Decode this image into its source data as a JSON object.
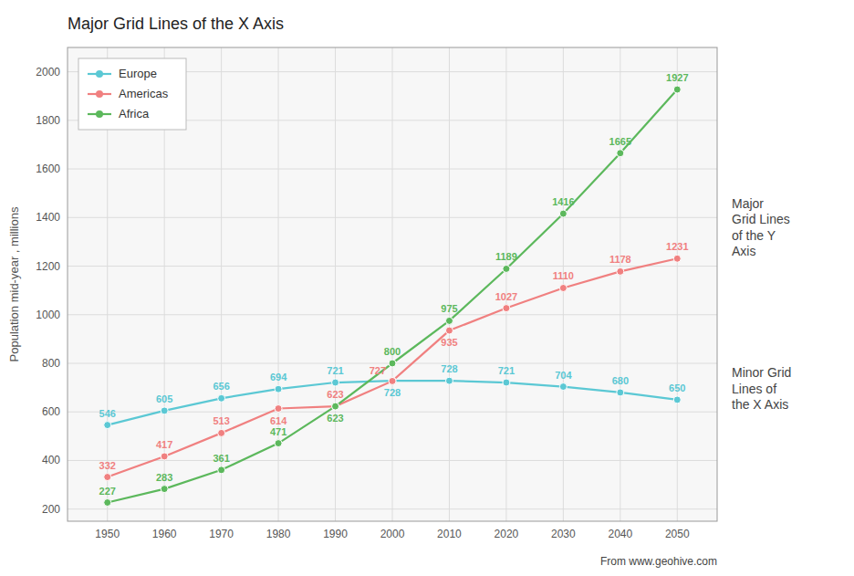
{
  "chart_data": {
    "type": "line",
    "title": "Major Grid Lines of the X Axis",
    "y_label": "Population mid-year , millions",
    "x": [
      1950,
      1960,
      1970,
      1980,
      1990,
      2000,
      2010,
      2020,
      2030,
      2040,
      2050
    ],
    "series": [
      {
        "name": "Europe",
        "color": "#5bc8d4",
        "values": [
          546,
          605,
          656,
          694,
          721,
          728,
          728,
          721,
          704,
          680,
          650
        ]
      },
      {
        "name": "Americas",
        "color": "#f08080",
        "values": [
          332,
          417,
          513,
          614,
          623,
          727,
          935,
          1027,
          1110,
          1178,
          1231
        ]
      },
      {
        "name": "Africa",
        "color": "#5cb85c",
        "values": [
          227,
          283,
          361,
          471,
          623,
          800,
          975,
          1189,
          1416,
          1665,
          1927
        ]
      }
    ],
    "xlim": [
      1943,
      2057
    ],
    "ylim": [
      150,
      2100
    ],
    "xticks": [
      1950,
      1960,
      1970,
      1980,
      1990,
      2000,
      2010,
      2020,
      2030,
      2040,
      2050
    ],
    "yticks": [
      200,
      400,
      600,
      800,
      1000,
      1200,
      1400,
      1600,
      1800,
      2000
    ],
    "grid": true,
    "legend": "upper left",
    "data_labels": true,
    "marker": "circle",
    "annotations": [
      "Major\nGrid Lines\nof the Y\nAxis",
      "Minor Grid\nLines of\nthe X Axis",
      "From www.geohive.com"
    ]
  }
}
